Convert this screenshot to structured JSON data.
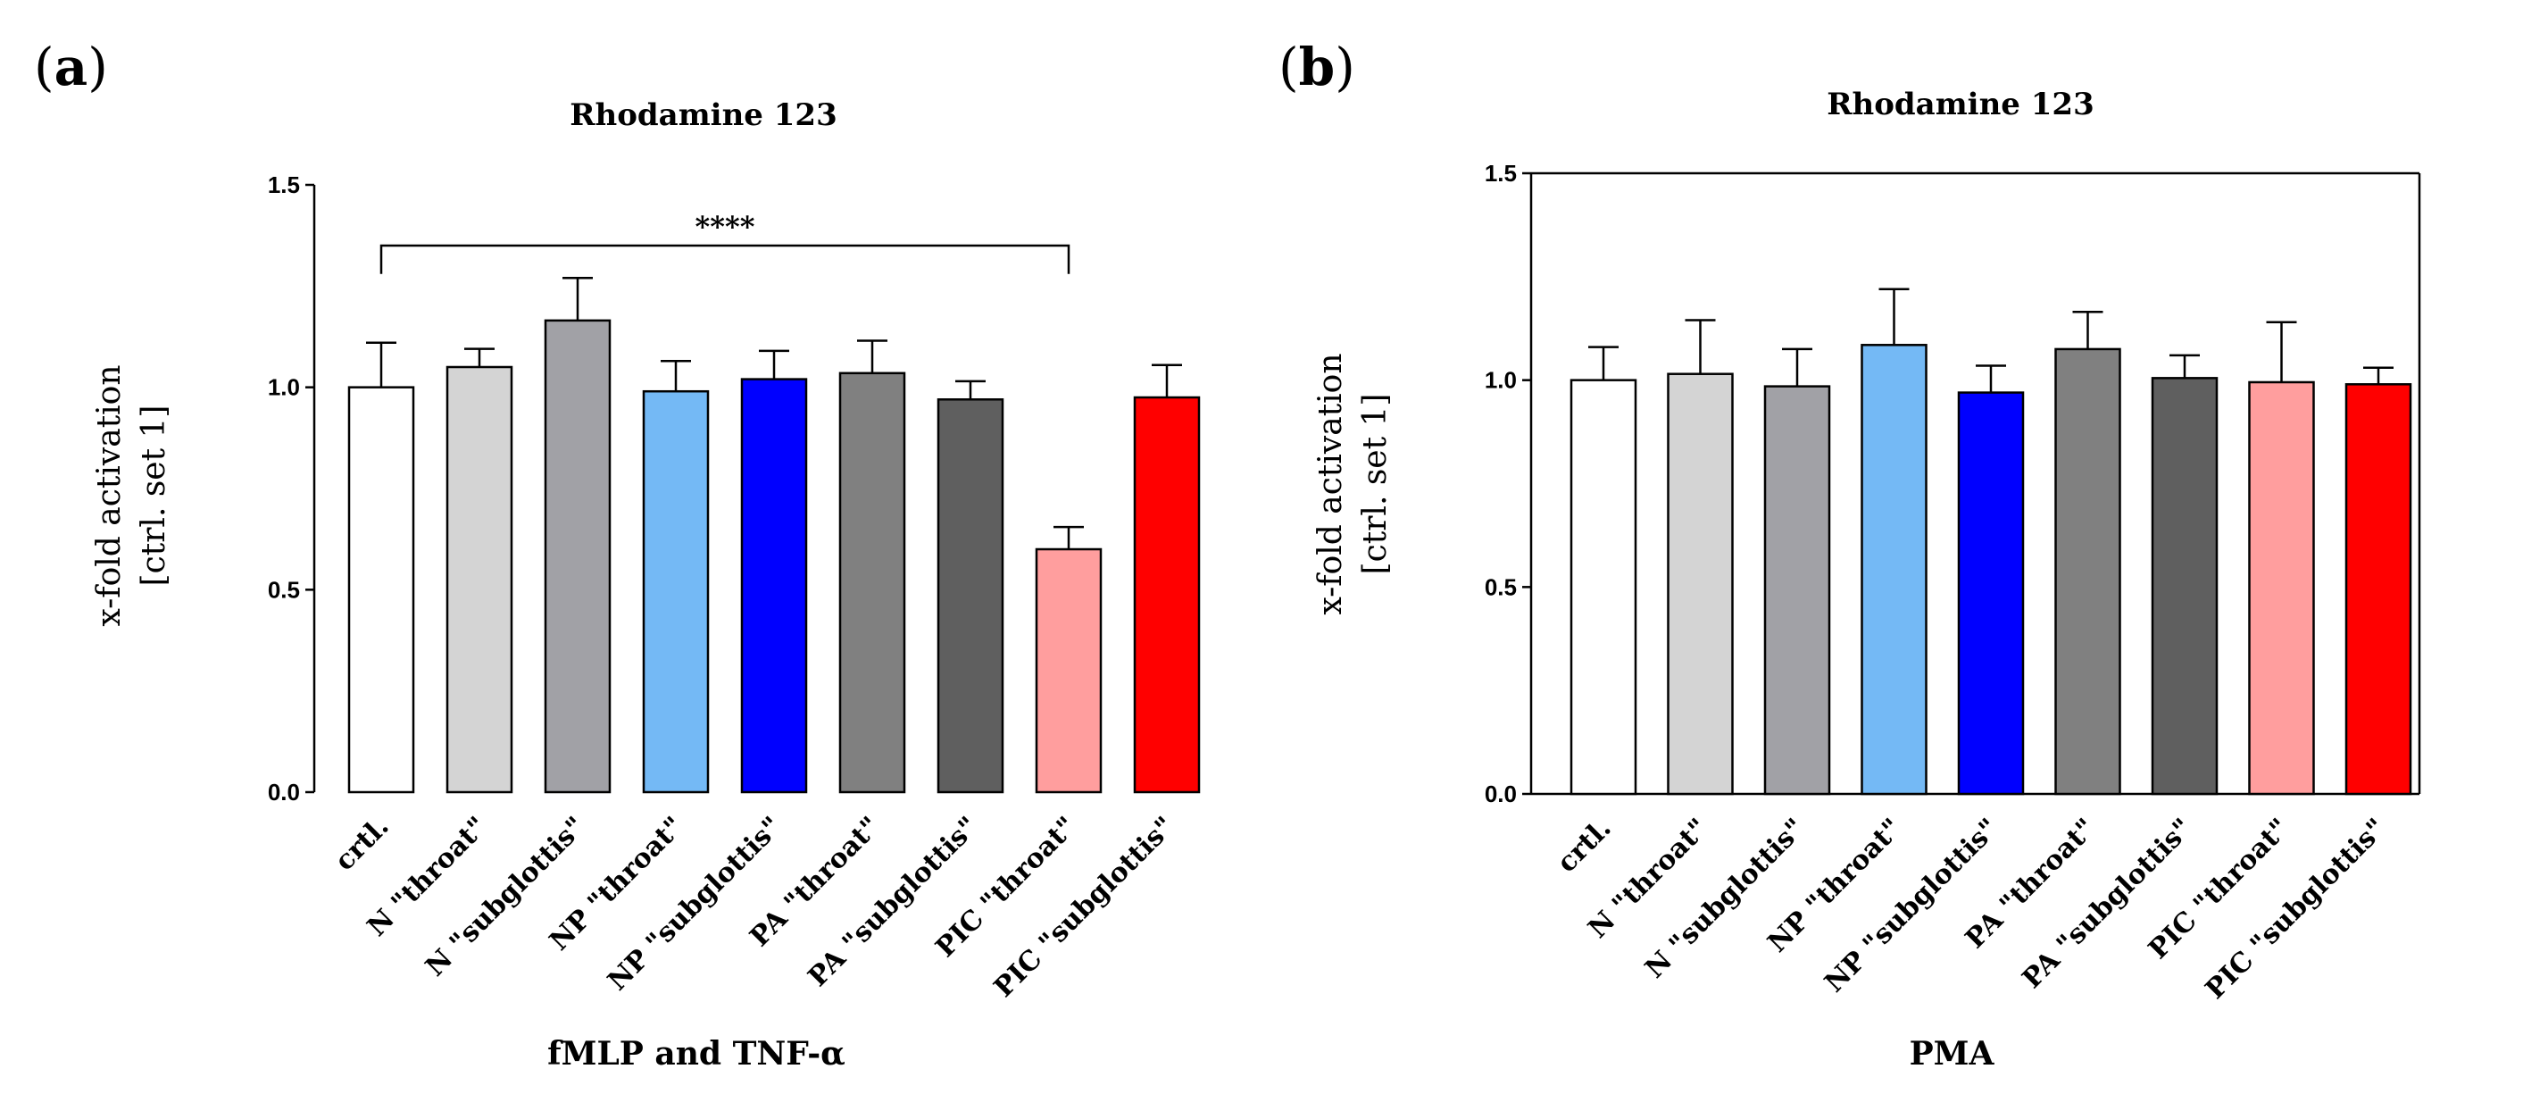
{
  "chart_data": [
    {
      "type": "bar",
      "panel_label": "a",
      "title": "Rhodamine 123",
      "ylabel_line1": "x-fold activation",
      "ylabel_line2": "[ctrl. set 1]",
      "xlabel": "fMLP and TNF-α",
      "ylim": [
        0,
        1.5
      ],
      "yticks": [
        "0.0",
        "0.5",
        "1.0",
        "1.5"
      ],
      "ytick_values": [
        0,
        0.5,
        1.0,
        1.5
      ],
      "categories": [
        "crtl.",
        "N \"throat\"",
        "N \"subglottis\"",
        "NP \"throat\"",
        "NP \"subglottis\"",
        "PA \"throat\"",
        "PA \"subglottis\"",
        "PIC \"throat\"",
        "PIC \"subglottis\""
      ],
      "values": [
        1.0,
        1.05,
        1.165,
        0.99,
        1.02,
        1.035,
        0.97,
        0.6,
        0.975
      ],
      "errors": [
        0.11,
        0.045,
        0.105,
        0.075,
        0.07,
        0.08,
        0.045,
        0.055,
        0.08
      ],
      "colors": [
        "#ffffff",
        "#d4d4d4",
        "#a1a1a6",
        "#74b9f5",
        "#0000ff",
        "#808080",
        "#5f5f5f",
        "#ff9e9e",
        "#ff0000"
      ],
      "significance": {
        "from": 0,
        "to": 7,
        "label": "****",
        "level": 1.35
      }
    },
    {
      "type": "bar",
      "panel_label": "b",
      "title": "Rhodamine 123",
      "ylabel_line1": "x-fold activation",
      "ylabel_line2": "[ctrl. set 1]",
      "xlabel": "PMA",
      "ylim": [
        0,
        1.5
      ],
      "yticks": [
        "0.0",
        "0.5",
        "1.0",
        "1.5"
      ],
      "ytick_values": [
        0,
        0.5,
        1.0,
        1.5
      ],
      "categories": [
        "crtl.",
        "N \"throat\"",
        "N \"subglottis\"",
        "NP \"throat\"",
        "NP \"subglottis\"",
        "PA \"throat\"",
        "PA \"subglottis\"",
        "PIC \"throat\"",
        "PIC \"subglottis\""
      ],
      "values": [
        1.0,
        1.015,
        0.985,
        1.085,
        0.97,
        1.075,
        1.005,
        0.995,
        0.99
      ],
      "errors": [
        0.08,
        0.13,
        0.09,
        0.135,
        0.065,
        0.09,
        0.055,
        0.145,
        0.04
      ],
      "colors": [
        "#ffffff",
        "#d4d4d4",
        "#a1a1a6",
        "#74b9f5",
        "#0000ff",
        "#808080",
        "#5f5f5f",
        "#ff9e9e",
        "#ff0000"
      ]
    }
  ]
}
